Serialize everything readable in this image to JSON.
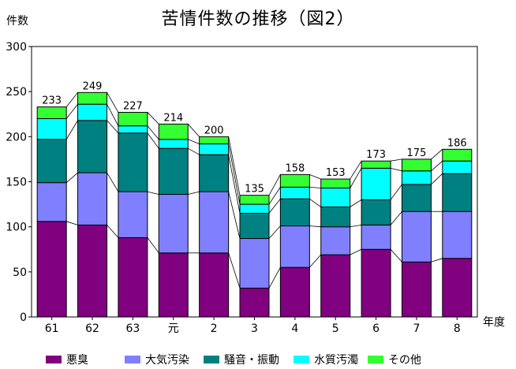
{
  "title": "苦情件数の推移（図2）",
  "chart_data": {
    "type": "bar",
    "stacked": true,
    "title": "苦情件数の推移（図2）",
    "ylabel": "件数",
    "xlabel": "年度",
    "ylim": [
      0,
      300
    ],
    "yticks": [
      0,
      50,
      100,
      150,
      200,
      250,
      300
    ],
    "categories": [
      "61",
      "62",
      "63",
      "元",
      "2",
      "3",
      "4",
      "5",
      "6",
      "7",
      "8"
    ],
    "totals": [
      233,
      249,
      227,
      214,
      200,
      135,
      158,
      153,
      173,
      175,
      186
    ],
    "series": [
      {
        "name": "悪臭",
        "color": "#800080",
        "values": [
          106,
          102,
          88,
          71,
          71,
          32,
          55,
          69,
          75,
          61,
          65
        ]
      },
      {
        "name": "大気汚染",
        "color": "#8080FF",
        "values": [
          43,
          58,
          51,
          65,
          68,
          55,
          46,
          31,
          27,
          56,
          52
        ]
      },
      {
        "name": "騒音・振動",
        "color": "#008080",
        "values": [
          48,
          58,
          65,
          51,
          41,
          28,
          30,
          22,
          28,
          30,
          42
        ]
      },
      {
        "name": "水質汚濁",
        "color": "#00FFFF",
        "values": [
          23,
          18,
          8,
          10,
          12,
          10,
          13,
          21,
          35,
          15,
          14
        ]
      },
      {
        "name": "その他",
        "color": "#33FF33",
        "values": [
          13,
          13,
          15,
          17,
          8,
          10,
          14,
          10,
          8,
          13,
          13
        ]
      }
    ],
    "grid": false,
    "legend_position": "bottom"
  }
}
